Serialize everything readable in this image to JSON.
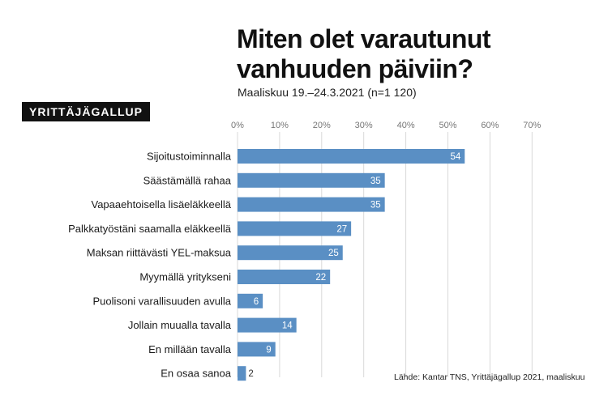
{
  "title": {
    "line1": "Miten olet varautunut",
    "line2": "vanhuuden päiviin?"
  },
  "subtitle": "Maaliskuu 19.–24.3.2021 (n=1 120)",
  "brand": "YRITTÄJÄGALLUP",
  "source": "Lähde: Kantar TNS, Yrittäjägallup 2021, maaliskuu",
  "colors": {
    "bar": "#5a8fc4",
    "grid": "#d9d9d9",
    "axis_text": "#777777",
    "label_text": "#1a1a1a"
  },
  "chart_data": {
    "type": "bar",
    "orientation": "horizontal",
    "categories": [
      "Sijoitustoiminnalla",
      "Säästämällä rahaa",
      "Vapaaehtoisella lisäeläkkeellä",
      "Palkkatyöstäni saamalla eläkkeellä",
      "Maksan riittävästi YEL-maksua",
      "Myymällä yritykseni",
      "Puolisoni varallisuuden avulla",
      "Jollain muualla tavalla",
      "En millään tavalla",
      "En osaa sanoa"
    ],
    "values": [
      54,
      35,
      35,
      27,
      25,
      22,
      6,
      14,
      9,
      2
    ],
    "xlim": [
      0,
      70
    ],
    "ticks": [
      "0%",
      "10%",
      "20%",
      "30%",
      "40%",
      "50%",
      "60%",
      "70%"
    ],
    "unit": "%",
    "title": "Miten olet varautunut vanhuuden päiviin?",
    "grid": true
  }
}
